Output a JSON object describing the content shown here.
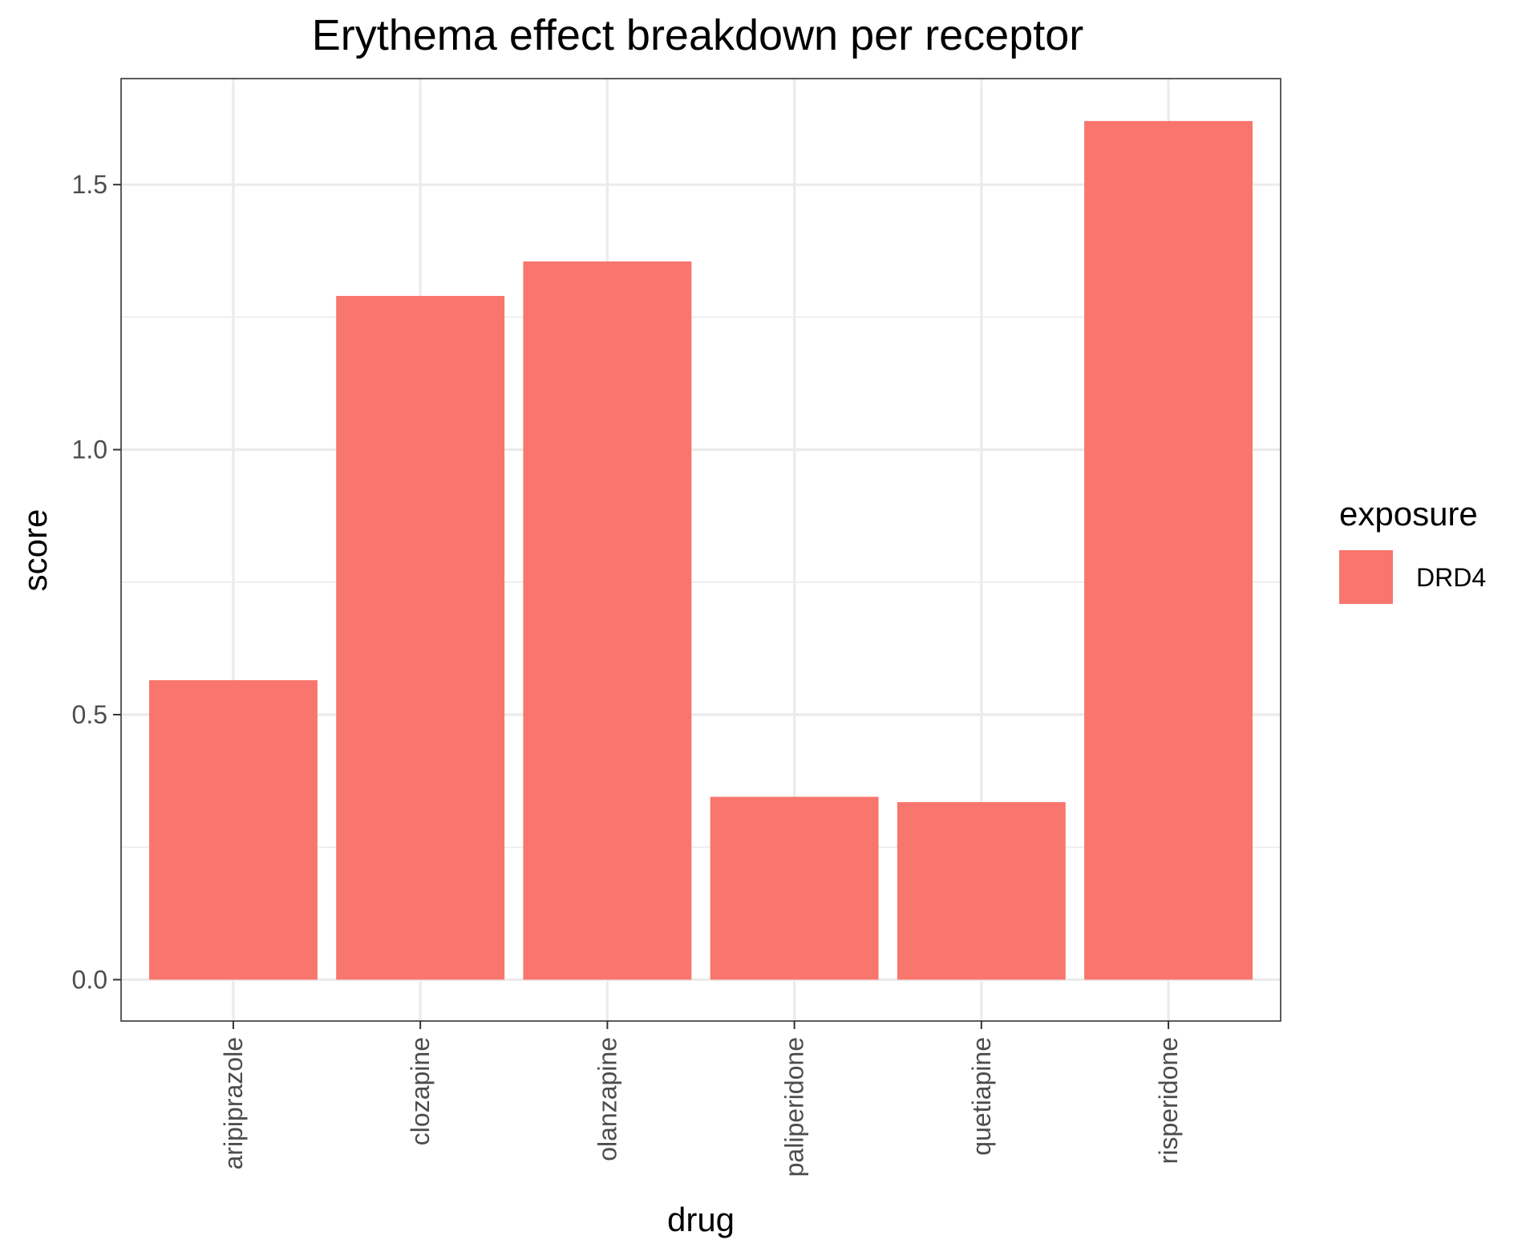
{
  "chart_data": {
    "type": "bar",
    "title": "Erythema effect breakdown per receptor",
    "xlabel": "drug",
    "ylabel": "score",
    "categories": [
      "aripiprazole",
      "clozapine",
      "olanzapine",
      "paliperidone",
      "quetiapine",
      "risperidone"
    ],
    "series": [
      {
        "name": "DRD4",
        "values": [
          0.565,
          1.29,
          1.355,
          0.345,
          0.335,
          1.62
        ]
      }
    ],
    "ylim": [
      -0.078,
      1.7
    ],
    "yticks": [
      0.0,
      0.5,
      1.0,
      1.5
    ],
    "ytick_labels": [
      "0.0",
      "0.5",
      "1.0",
      "1.5"
    ],
    "ygrid_minor": [
      0.25,
      0.75,
      1.25
    ],
    "grid": true,
    "legend": {
      "title": "exposure",
      "position": "right"
    },
    "colors": {
      "bar": "#F8766D",
      "grid": "#ebebeb",
      "panel_border": "#333333",
      "tick": "#333333"
    }
  }
}
